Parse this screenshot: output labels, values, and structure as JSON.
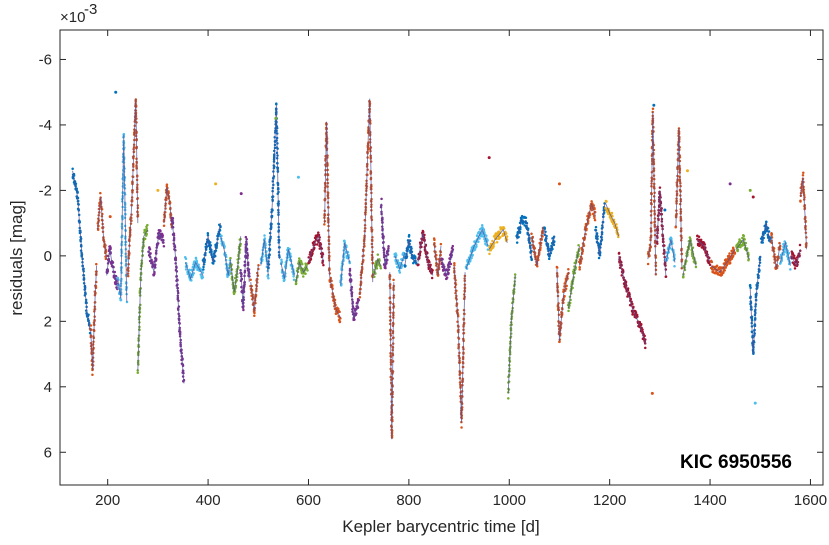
{
  "chart_data": {
    "type": "scatter",
    "title": "",
    "xlabel": "Kepler barycentric time  [d]",
    "ylabel": "residuals  [mag]",
    "annotation": "KIC 6950556",
    "y_exponent_base": "×10",
    "y_exponent_power": "-3",
    "xlim": [
      105,
      1625
    ],
    "ylim": [
      -6.9,
      7.0
    ],
    "y_reversed": true,
    "grid": false,
    "legend": "none",
    "xticks": [
      200,
      400,
      600,
      800,
      1000,
      1200,
      1400,
      1600
    ],
    "yticks": [
      -6,
      -4,
      -2,
      0,
      2,
      4,
      6
    ],
    "ytick_labels": [
      "-6",
      "-4",
      "-2",
      "0",
      "2",
      "4",
      "6"
    ],
    "palette": [
      "#0072BD",
      "#D95319",
      "#EDB120",
      "#7E2F8E",
      "#77AC30",
      "#4DBEEE",
      "#A2142F"
    ],
    "trend_color": "#4d4d99",
    "segments": [
      {
        "c": 0,
        "pts": [
          [
            130,
            -2.6
          ],
          [
            140,
            -1.8
          ],
          [
            150,
            0.2
          ],
          [
            158,
            1.6
          ],
          [
            165,
            2.3
          ]
        ]
      },
      {
        "c": 1,
        "pts": [
          [
            166,
            2.2
          ],
          [
            170,
            3.5
          ],
          [
            175,
            1.2
          ],
          [
            178,
            0.3
          ]
        ]
      },
      {
        "c": 1,
        "pts": [
          [
            180,
            -0.8
          ],
          [
            186,
            -1.8
          ],
          [
            192,
            -0.5
          ],
          [
            198,
            0.1
          ]
        ]
      },
      {
        "c": 3,
        "pts": [
          [
            198,
            0.6
          ],
          [
            204,
            -0.2
          ],
          [
            212,
            0.5
          ],
          [
            220,
            1.0
          ]
        ]
      },
      {
        "c": 5,
        "pts": [
          [
            220,
            0.7
          ],
          [
            226,
            1.3
          ],
          [
            232,
            -3.7
          ],
          [
            238,
            1.4
          ]
        ]
      },
      {
        "c": 1,
        "pts": [
          [
            240,
            0.6
          ],
          [
            248,
            -1.6
          ],
          [
            256,
            -4.8
          ],
          [
            260,
            -1.0
          ]
        ]
      },
      {
        "c": 4,
        "pts": [
          [
            260,
            3.5
          ],
          [
            266,
            0.6
          ],
          [
            272,
            -0.6
          ],
          [
            280,
            -0.8
          ]
        ]
      },
      {
        "c": 3,
        "pts": [
          [
            282,
            -0.2
          ],
          [
            292,
            0.5
          ],
          [
            302,
            -0.7
          ],
          [
            312,
            -0.4
          ]
        ]
      },
      {
        "c": 1,
        "pts": [
          [
            312,
            -1.0
          ],
          [
            318,
            -2.1
          ],
          [
            324,
            -1.6
          ],
          [
            328,
            -0.8
          ]
        ]
      },
      {
        "c": 3,
        "pts": [
          [
            328,
            -1.2
          ],
          [
            336,
            0.2
          ],
          [
            344,
            2.4
          ],
          [
            352,
            3.9
          ]
        ]
      },
      {
        "c": 5,
        "pts": [
          [
            355,
            0.2
          ],
          [
            365,
            0.7
          ],
          [
            375,
            0.2
          ],
          [
            390,
            0.6
          ]
        ]
      },
      {
        "c": 0,
        "pts": [
          [
            390,
            0.3
          ],
          [
            400,
            -0.6
          ],
          [
            410,
            0.2
          ],
          [
            425,
            -1.0
          ]
        ]
      },
      {
        "c": 5,
        "pts": [
          [
            425,
            -0.6
          ],
          [
            432,
            -0.2
          ],
          [
            440,
            0.6
          ],
          [
            445,
            0.1
          ]
        ]
      },
      {
        "c": 4,
        "pts": [
          [
            445,
            0.2
          ],
          [
            452,
            1.1
          ],
          [
            458,
            0.5
          ],
          [
            465,
            -0.6
          ]
        ]
      },
      {
        "c": 3,
        "pts": [
          [
            465,
            0.4
          ],
          [
            470,
            1.6
          ],
          [
            476,
            -0.5
          ],
          [
            482,
            0.8
          ]
        ]
      },
      {
        "c": 1,
        "pts": [
          [
            485,
            0.8
          ],
          [
            492,
            1.7
          ],
          [
            500,
            0.3
          ]
        ]
      },
      {
        "c": 5,
        "pts": [
          [
            505,
            0.3
          ],
          [
            512,
            -0.5
          ],
          [
            520,
            0.6
          ]
        ]
      },
      {
        "c": 0,
        "pts": [
          [
            520,
            0.4
          ],
          [
            528,
            -1.6
          ],
          [
            536,
            -4.6
          ],
          [
            542,
            0.1
          ]
        ]
      },
      {
        "c": 5,
        "pts": [
          [
            545,
            0.2
          ],
          [
            552,
            0.7
          ],
          [
            560,
            -0.2
          ],
          [
            572,
            0.6
          ]
        ]
      },
      {
        "c": 4,
        "pts": [
          [
            575,
            0.8
          ],
          [
            582,
            0.2
          ],
          [
            590,
            0.5
          ],
          [
            598,
            0.3
          ]
        ]
      },
      {
        "c": 6,
        "pts": [
          [
            600,
            0.2
          ],
          [
            610,
            -0.3
          ],
          [
            620,
            -0.6
          ],
          [
            630,
            0.2
          ]
        ]
      },
      {
        "c": 1,
        "pts": [
          [
            632,
            -1.0
          ],
          [
            636,
            -4.1
          ],
          [
            642,
            0.6
          ],
          [
            654,
            1.6
          ],
          [
            664,
            1.9
          ]
        ]
      },
      {
        "c": 5,
        "pts": [
          [
            664,
            0.9
          ],
          [
            672,
            -0.4
          ],
          [
            682,
            0.2
          ]
        ]
      },
      {
        "c": 3,
        "pts": [
          [
            682,
            0.4
          ],
          [
            690,
            1.9
          ],
          [
            700,
            1.4
          ]
        ]
      },
      {
        "c": 1,
        "pts": [
          [
            702,
            1.2
          ],
          [
            712,
            -0.6
          ],
          [
            722,
            -4.8
          ],
          [
            728,
            0.8
          ]
        ]
      },
      {
        "c": 4,
        "pts": [
          [
            730,
            0.6
          ],
          [
            738,
            0.1
          ],
          [
            744,
            0.3
          ]
        ]
      },
      {
        "c": 3,
        "pts": [
          [
            745,
            -1.6
          ],
          [
            752,
            0.3
          ],
          [
            760,
            -0.2
          ]
        ]
      },
      {
        "c": 1,
        "pts": [
          [
            762,
            0.5
          ],
          [
            766,
            5.6
          ],
          [
            770,
            0.8
          ]
        ]
      },
      {
        "c": 5,
        "pts": [
          [
            772,
            0.0
          ],
          [
            782,
            0.4
          ],
          [
            792,
            -0.1
          ]
        ]
      },
      {
        "c": 0,
        "pts": [
          [
            792,
            0.3
          ],
          [
            800,
            -0.5
          ],
          [
            808,
            0.1
          ],
          [
            815,
            0.2
          ]
        ]
      },
      {
        "c": 6,
        "pts": [
          [
            818,
            0.2
          ],
          [
            828,
            -0.7
          ],
          [
            838,
            0.2
          ],
          [
            848,
            0.6
          ]
        ]
      },
      {
        "c": 1,
        "pts": [
          [
            850,
            -0.4
          ],
          [
            858,
            0.6
          ],
          [
            864,
            -0.3
          ]
        ]
      },
      {
        "c": 3,
        "pts": [
          [
            865,
            0.1
          ],
          [
            875,
            0.6
          ],
          [
            888,
            -0.2
          ]
        ]
      },
      {
        "c": 1,
        "pts": [
          [
            890,
            0.3
          ],
          [
            898,
            2.0
          ],
          [
            905,
            5.1
          ],
          [
            912,
            0.5
          ]
        ]
      },
      {
        "c": 5,
        "pts": [
          [
            914,
            0.4
          ],
          [
            930,
            -0.3
          ],
          [
            946,
            -0.8
          ],
          [
            958,
            -0.3
          ]
        ]
      },
      {
        "c": 2,
        "pts": [
          [
            960,
            -0.2
          ],
          [
            972,
            -0.5
          ],
          [
            988,
            -0.8
          ],
          [
            996,
            -0.4
          ]
        ]
      },
      {
        "c": 4,
        "pts": [
          [
            998,
            4.2
          ],
          [
            1004,
            2.0
          ],
          [
            1012,
            0.6
          ]
        ]
      },
      {
        "c": 0,
        "pts": [
          [
            1015,
            -0.5
          ],
          [
            1025,
            -1.1
          ],
          [
            1035,
            -1.0
          ],
          [
            1045,
            0.1
          ]
        ]
      },
      {
        "c": 1,
        "pts": [
          [
            1045,
            -0.6
          ],
          [
            1055,
            0.3
          ],
          [
            1062,
            -0.4
          ],
          [
            1068,
            -0.9
          ]
        ]
      },
      {
        "c": 0,
        "pts": [
          [
            1070,
            -0.8
          ],
          [
            1080,
            0.0
          ],
          [
            1090,
            -0.6
          ]
        ]
      },
      {
        "c": 1,
        "pts": [
          [
            1095,
            0.4
          ],
          [
            1100,
            2.6
          ],
          [
            1108,
            1.2
          ],
          [
            1118,
            0.5
          ]
        ]
      },
      {
        "c": 4,
        "pts": [
          [
            1118,
            1.6
          ],
          [
            1128,
            0.6
          ],
          [
            1140,
            -0.3
          ]
        ]
      },
      {
        "c": 1,
        "pts": [
          [
            1140,
            0.3
          ],
          [
            1152,
            -0.8
          ],
          [
            1164,
            -1.6
          ],
          [
            1172,
            -1.2
          ]
        ]
      },
      {
        "c": 0,
        "pts": [
          [
            1172,
            -0.8
          ],
          [
            1180,
            0.0
          ],
          [
            1190,
            -1.6
          ]
        ]
      },
      {
        "c": 2,
        "pts": [
          [
            1192,
            -1.6
          ],
          [
            1200,
            -1.3
          ],
          [
            1210,
            -1.0
          ],
          [
            1218,
            -0.6
          ]
        ]
      },
      {
        "c": 6,
        "pts": [
          [
            1218,
            0.0
          ],
          [
            1230,
            0.8
          ],
          [
            1245,
            1.6
          ],
          [
            1262,
            2.2
          ],
          [
            1272,
            2.7
          ]
        ]
      },
      {
        "c": 1,
        "pts": [
          [
            1276,
            0.1
          ],
          [
            1282,
            -0.4
          ],
          [
            1286,
            -4.4
          ],
          [
            1292,
            0.6
          ]
        ]
      },
      {
        "c": 6,
        "pts": [
          [
            1294,
            -0.4
          ],
          [
            1300,
            -2.0
          ],
          [
            1306,
            -0.6
          ],
          [
            1312,
            0.6
          ]
        ]
      },
      {
        "c": 5,
        "pts": [
          [
            1312,
            0.2
          ],
          [
            1322,
            -0.5
          ],
          [
            1330,
            0.2
          ]
        ]
      },
      {
        "c": 1,
        "pts": [
          [
            1332,
            -0.9
          ],
          [
            1338,
            -3.9
          ],
          [
            1344,
            0.4
          ]
        ]
      },
      {
        "c": 4,
        "pts": [
          [
            1346,
            0.6
          ],
          [
            1360,
            -0.5
          ],
          [
            1372,
            0.3
          ]
        ]
      },
      {
        "c": 6,
        "pts": [
          [
            1374,
            -0.5
          ],
          [
            1388,
            -0.3
          ],
          [
            1400,
            0.2
          ]
        ]
      },
      {
        "c": 1,
        "pts": [
          [
            1402,
            0.3
          ],
          [
            1420,
            0.5
          ],
          [
            1438,
            0.1
          ],
          [
            1450,
            -0.2
          ]
        ]
      },
      {
        "c": 4,
        "pts": [
          [
            1452,
            -0.2
          ],
          [
            1466,
            -0.5
          ],
          [
            1478,
            0.1
          ]
        ]
      },
      {
        "c": 0,
        "pts": [
          [
            1480,
            1.0
          ],
          [
            1486,
            3.0
          ],
          [
            1492,
            1.2
          ],
          [
            1500,
            0.0
          ]
        ]
      },
      {
        "c": 0,
        "pts": [
          [
            1502,
            -0.4
          ],
          [
            1512,
            -1.0
          ],
          [
            1520,
            -0.4
          ]
        ]
      },
      {
        "c": 1,
        "pts": [
          [
            1522,
            -0.6
          ],
          [
            1532,
            0.4
          ],
          [
            1540,
            -0.4
          ]
        ]
      },
      {
        "c": 5,
        "pts": [
          [
            1540,
            0.2
          ],
          [
            1550,
            -0.4
          ],
          [
            1560,
            0.3
          ]
        ]
      },
      {
        "c": 6,
        "pts": [
          [
            1562,
            0.0
          ],
          [
            1572,
            0.3
          ],
          [
            1580,
            -0.2
          ]
        ]
      },
      {
        "c": 1,
        "pts": [
          [
            1580,
            -1.8
          ],
          [
            1585,
            -2.4
          ],
          [
            1590,
            -1.0
          ],
          [
            1592,
            -0.2
          ]
        ]
      }
    ],
    "outliers": [
      [
        216,
        -5.0
      ],
      [
        205,
        -1.2
      ],
      [
        415,
        -2.2
      ],
      [
        466,
        -1.9
      ],
      [
        535,
        -4.2
      ],
      [
        580,
        -2.4
      ],
      [
        960,
        -3.0
      ],
      [
        1288,
        -4.6
      ],
      [
        1285,
        4.2
      ],
      [
        1355,
        -2.6
      ],
      [
        1440,
        -2.2
      ],
      [
        1480,
        -2.0
      ],
      [
        1490,
        4.5
      ],
      [
        1486,
        -1.8
      ],
      [
        1310,
        -1.4
      ],
      [
        1100,
        -2.2
      ],
      [
        300,
        -2.0
      ]
    ]
  }
}
